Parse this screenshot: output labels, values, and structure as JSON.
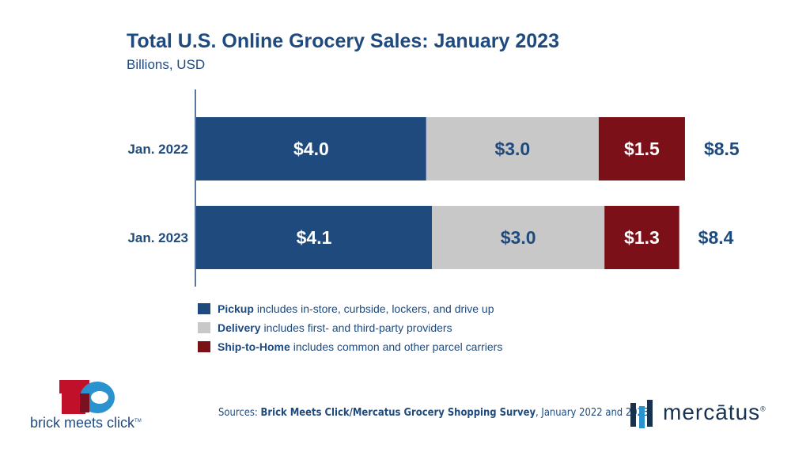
{
  "chart_data": {
    "type": "bar",
    "orientation": "horizontal",
    "stacked": true,
    "title": "Total U.S. Online Grocery Sales: January 2023",
    "subtitle": "Billions, USD",
    "categories": [
      "Jan. 2022",
      "Jan. 2023"
    ],
    "series": [
      {
        "name": "Pickup",
        "color": "#1f4a7e",
        "values": [
          4.0,
          4.1
        ],
        "labels": [
          "$4.0",
          "$4.1"
        ]
      },
      {
        "name": "Delivery",
        "color": "#c8c8c8",
        "values": [
          3.0,
          3.0
        ],
        "labels": [
          "$3.0",
          "$3.0"
        ]
      },
      {
        "name": "Ship-to-Home",
        "color": "#7b1019",
        "values": [
          1.5,
          1.3
        ],
        "labels": [
          "$1.5",
          "$1.3"
        ]
      }
    ],
    "totals": [
      "$8.5",
      "$8.4"
    ],
    "grid": false
  },
  "legend": [
    {
      "name": "Pickup",
      "desc": "includes in-store, curbside, lockers, and drive up",
      "color": "#1f4a7e"
    },
    {
      "name": "Delivery",
      "desc": "includes first- and third-party providers",
      "color": "#c8c8c8"
    },
    {
      "name": "Ship-to-Home",
      "desc": "includes common and other parcel carriers",
      "color": "#7b1019"
    }
  ],
  "sources": {
    "prefix": "Sources: ",
    "bold": "Brick Meets Click/Mercatus Grocery Shopping Survey",
    "suffix": ", January 2022 and 2023."
  },
  "logos": {
    "left": "brick meets click",
    "left_tm": "TM",
    "right": "mercātus",
    "right_reg": "®"
  }
}
